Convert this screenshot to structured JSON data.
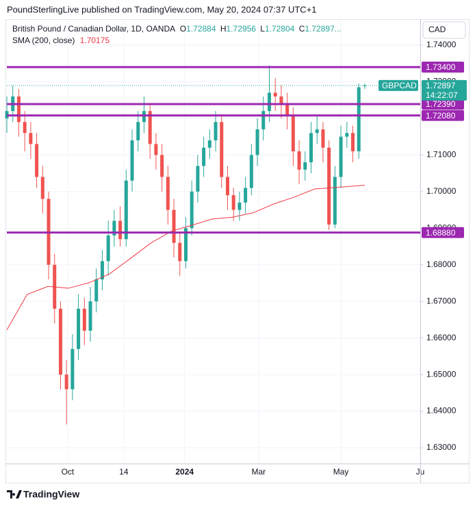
{
  "header": {
    "published": "PoundSterlingLive published on TradingView.com, May 20, 2024 07:37 UTC+1",
    "symbol": "British Pound / Canadian Dollar, 1D, OANDA",
    "ohlc_keys": [
      "O",
      "H",
      "L",
      "C"
    ],
    "truncation": "..."
  },
  "currency": "CAD",
  "footer": "TradingView",
  "chart_data": {
    "type": "candlestick",
    "symbol": "GBPCAD",
    "countdown": "14:22:07",
    "up_color": "#26a69a",
    "down_color": "#ef5350",
    "open": [
      1.72,
      1.722,
      1.726,
      1.719,
      1.716,
      1.713,
      1.704,
      1.698,
      1.68,
      1.668,
      1.65,
      1.646,
      1.657,
      1.668,
      1.662,
      1.67,
      1.676,
      1.681,
      1.688,
      1.692,
      1.687,
      1.703,
      1.714,
      1.719,
      1.722,
      1.713,
      1.71,
      1.704,
      1.695,
      1.686,
      1.681,
      1.69,
      1.7,
      1.707,
      1.712,
      1.714,
      1.719,
      1.704,
      1.699,
      1.695,
      1.697,
      1.701,
      1.71,
      1.717,
      1.722,
      1.727,
      1.726,
      1.724,
      1.721,
      1.711,
      1.706,
      1.708,
      1.716,
      1.717,
      1.712,
      1.691,
      1.704,
      1.715,
      1.716,
      1.711,
      1.72884
    ],
    "high": [
      1.726,
      1.729,
      1.728,
      1.722,
      1.719,
      1.716,
      1.707,
      1.7,
      1.683,
      1.67,
      1.654,
      1.661,
      1.672,
      1.671,
      1.674,
      1.679,
      1.684,
      1.692,
      1.695,
      1.696,
      1.706,
      1.717,
      1.722,
      1.726,
      1.724,
      1.716,
      1.713,
      1.707,
      1.698,
      1.689,
      1.693,
      1.703,
      1.71,
      1.715,
      1.717,
      1.722,
      1.721,
      1.707,
      1.701,
      1.7,
      1.704,
      1.713,
      1.72,
      1.726,
      1.7345,
      1.731,
      1.729,
      1.727,
      1.723,
      1.714,
      1.711,
      1.719,
      1.721,
      1.719,
      1.714,
      1.707,
      1.718,
      1.719,
      1.718,
      1.7295,
      1.72956
    ],
    "low": [
      1.716,
      1.719,
      1.715,
      1.711,
      1.709,
      1.701,
      1.694,
      1.676,
      1.664,
      1.646,
      1.6364,
      1.643,
      1.654,
      1.658,
      1.659,
      1.667,
      1.673,
      1.677,
      1.685,
      1.685,
      1.685,
      1.7,
      1.711,
      1.716,
      1.709,
      1.706,
      1.7,
      1.691,
      1.682,
      1.677,
      1.679,
      1.688,
      1.697,
      1.704,
      1.709,
      1.711,
      1.701,
      1.695,
      1.692,
      1.692,
      1.694,
      1.699,
      1.707,
      1.714,
      1.719,
      1.722,
      1.72,
      1.717,
      1.707,
      1.702,
      1.703,
      1.705,
      1.713,
      1.708,
      1.6895,
      1.69,
      1.701,
      1.712,
      1.708,
      1.709,
      1.72804
    ],
    "close": [
      1.722,
      1.726,
      1.719,
      1.716,
      1.713,
      1.704,
      1.698,
      1.68,
      1.668,
      1.65,
      1.646,
      1.657,
      1.668,
      1.662,
      1.67,
      1.676,
      1.681,
      1.688,
      1.692,
      1.687,
      1.703,
      1.714,
      1.719,
      1.722,
      1.713,
      1.71,
      1.704,
      1.695,
      1.686,
      1.681,
      1.69,
      1.7,
      1.707,
      1.712,
      1.714,
      1.719,
      1.704,
      1.699,
      1.695,
      1.697,
      1.701,
      1.71,
      1.717,
      1.722,
      1.727,
      1.726,
      1.724,
      1.721,
      1.711,
      1.706,
      1.708,
      1.716,
      1.717,
      1.712,
      1.691,
      1.704,
      1.715,
      1.716,
      1.711,
      1.7285,
      1.72897
    ],
    "sma": {
      "name": "SMA (200, close)",
      "color": "#f23645",
      "x": [
        0,
        3.4,
        6.9,
        10.3,
        13.8,
        17.2,
        20.6,
        24.1,
        27.5,
        31,
        34.4,
        37.8,
        41.3,
        44.7,
        48.2,
        51.6,
        55,
        60
      ],
      "values": [
        1.6622,
        1.6719,
        1.6741,
        1.6736,
        1.6751,
        1.6775,
        1.6816,
        1.6859,
        1.6891,
        1.6908,
        1.6925,
        1.693,
        1.6942,
        1.6966,
        1.6985,
        1.7007,
        1.7011,
        1.70175
      ]
    },
    "levels": {
      "color": "#9c27b0",
      "values": [
        1.734,
        1.7239,
        1.7208,
        1.6888
      ],
      "value_labels": [
        "1.73400",
        "1.72390",
        "1.72080",
        "1.68880"
      ]
    },
    "xlim": [
      0,
      69.3
    ],
    "ylim": [
      1.6257,
      1.7471
    ],
    "xticks": [
      {
        "value": 10.2,
        "label": "Oct"
      },
      {
        "value": 19.6,
        "label": "14"
      },
      {
        "value": 29.8,
        "label": "2024"
      },
      {
        "value": 42.2,
        "label": "Mar"
      },
      {
        "value": 56,
        "label": "May"
      },
      {
        "value": 69.3,
        "label": "Ju"
      }
    ],
    "yticks": [
      {
        "value": 1.63,
        "label": "1.63000"
      },
      {
        "value": 1.64,
        "label": "1.64000"
      },
      {
        "value": 1.65,
        "label": "1.65000"
      },
      {
        "value": 1.66,
        "label": "1.66000"
      },
      {
        "value": 1.67,
        "label": "1.67000"
      },
      {
        "value": 1.68,
        "label": "1.68000"
      },
      {
        "value": 1.69,
        "label": "1.69000"
      },
      {
        "value": 1.7,
        "label": "1.70000"
      },
      {
        "value": 1.71,
        "label": "1.71000"
      },
      {
        "value": 1.72,
        "label": "1.72000"
      },
      {
        "value": 1.73,
        "label": "1.73000"
      },
      {
        "value": 1.74,
        "label": "1.74000"
      }
    ],
    "grid": true
  }
}
